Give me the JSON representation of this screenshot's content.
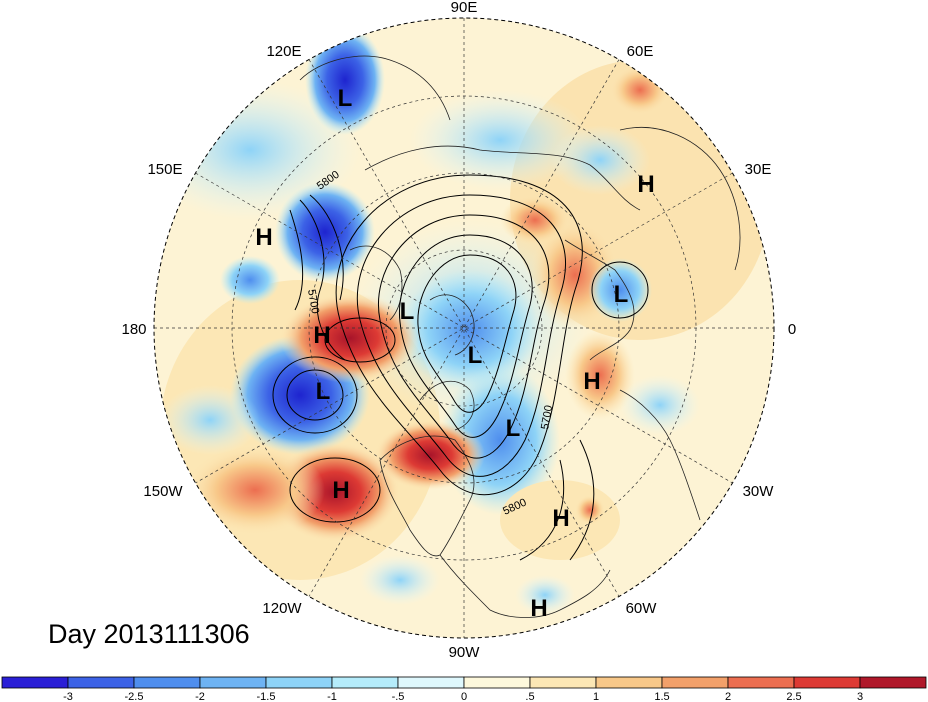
{
  "map": {
    "projection": "polar-stereographic-north",
    "lon_labels": [
      {
        "id": "90e",
        "text": "90E"
      },
      {
        "id": "60e",
        "text": "60E"
      },
      {
        "id": "30e",
        "text": "30E"
      },
      {
        "id": "0",
        "text": "0"
      },
      {
        "id": "30w",
        "text": "30W"
      },
      {
        "id": "60w",
        "text": "60W"
      },
      {
        "id": "90w",
        "text": "90W"
      },
      {
        "id": "120w",
        "text": "120W"
      },
      {
        "id": "150w",
        "text": "150W"
      },
      {
        "id": "180",
        "text": "180"
      },
      {
        "id": "150e",
        "text": "150E"
      },
      {
        "id": "120e",
        "text": "120E"
      }
    ],
    "pressure_centers": [
      {
        "id": "l-120e",
        "type": "L"
      },
      {
        "id": "h-30e",
        "type": "H"
      },
      {
        "id": "h-150e",
        "type": "H"
      },
      {
        "id": "l-europe",
        "type": "L"
      },
      {
        "id": "l-arctic-1",
        "type": "L"
      },
      {
        "id": "l-arctic-2",
        "type": "L"
      },
      {
        "id": "h-date-line",
        "type": "H"
      },
      {
        "id": "h-atlantic",
        "type": "H"
      },
      {
        "id": "l-gulf-alaska",
        "type": "L"
      },
      {
        "id": "l-east-us",
        "type": "L"
      },
      {
        "id": "h-pacific",
        "type": "H"
      },
      {
        "id": "h-w-atlantic",
        "type": "H"
      },
      {
        "id": "h-south",
        "type": "H"
      }
    ],
    "contour_labels": [
      "5800",
      "5700",
      "5700",
      "5800"
    ]
  },
  "title": {
    "day_text": "Day 2013111306"
  },
  "colorbar": {
    "ticks": [
      "-3",
      "-2.5",
      "-2",
      "-1.5",
      "-1",
      "-.5",
      "0",
      ".5",
      "1",
      "1.5",
      "2",
      "2.5",
      "3"
    ],
    "colors": [
      "#2a1fd6",
      "#3c62e6",
      "#4f8eee",
      "#6eb3f3",
      "#8ed3f7",
      "#b5ecfb",
      "#dff8fd",
      "#fdf8dc",
      "#fce7b5",
      "#f8c889",
      "#f2a06a",
      "#ec6e50",
      "#dd3a34",
      "#b0182a"
    ]
  }
}
